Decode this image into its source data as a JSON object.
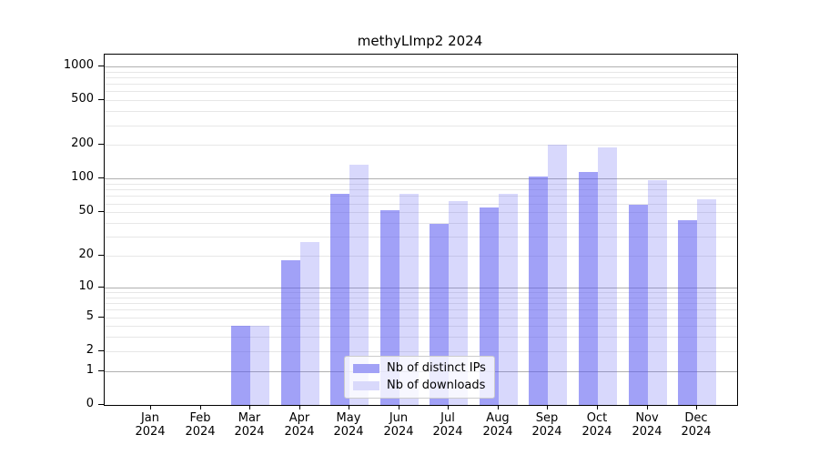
{
  "title": "methyLImp2 2024",
  "chart_data": {
    "type": "bar",
    "title": "methyLImp2 2024",
    "categories": [
      "Jan",
      "Feb",
      "Mar",
      "Apr",
      "May",
      "Jun",
      "Jul",
      "Aug",
      "Sep",
      "Oct",
      "Nov",
      "Dec"
    ],
    "year_label": "2024",
    "series": [
      {
        "name": "Nb of distinct IPs",
        "values": [
          0,
          0,
          4,
          18,
          74,
          52,
          39,
          55,
          105,
          116,
          59,
          42
        ],
        "color_fill": "rgba(88,88,240,0.56)",
        "color_solid": "#a2a2f6"
      },
      {
        "name": "Nb of downloads",
        "values": [
          0,
          0,
          4,
          27,
          133,
          73,
          63,
          73,
          203,
          190,
          97,
          66
        ],
        "color_fill": "rgba(88,88,240,0.23)",
        "color_solid": "#d9d9fb"
      }
    ],
    "y_scale": "log10(1+value)",
    "y_ticks": [
      0,
      1,
      2,
      5,
      10,
      20,
      50,
      100,
      200,
      500,
      1000
    ],
    "y_major_gridlines": [
      1,
      10,
      100,
      1000
    ],
    "ylim": [
      0,
      1320
    ],
    "grid": "both",
    "legend_position": "inside lower center"
  },
  "colors": {
    "axis": "#000000",
    "major_grid": "#b0b0b0",
    "minor_grid": "#e7e7e7",
    "legend_border": "#cccccc",
    "legend_bg": "rgba(255,255,255,0.8)"
  }
}
